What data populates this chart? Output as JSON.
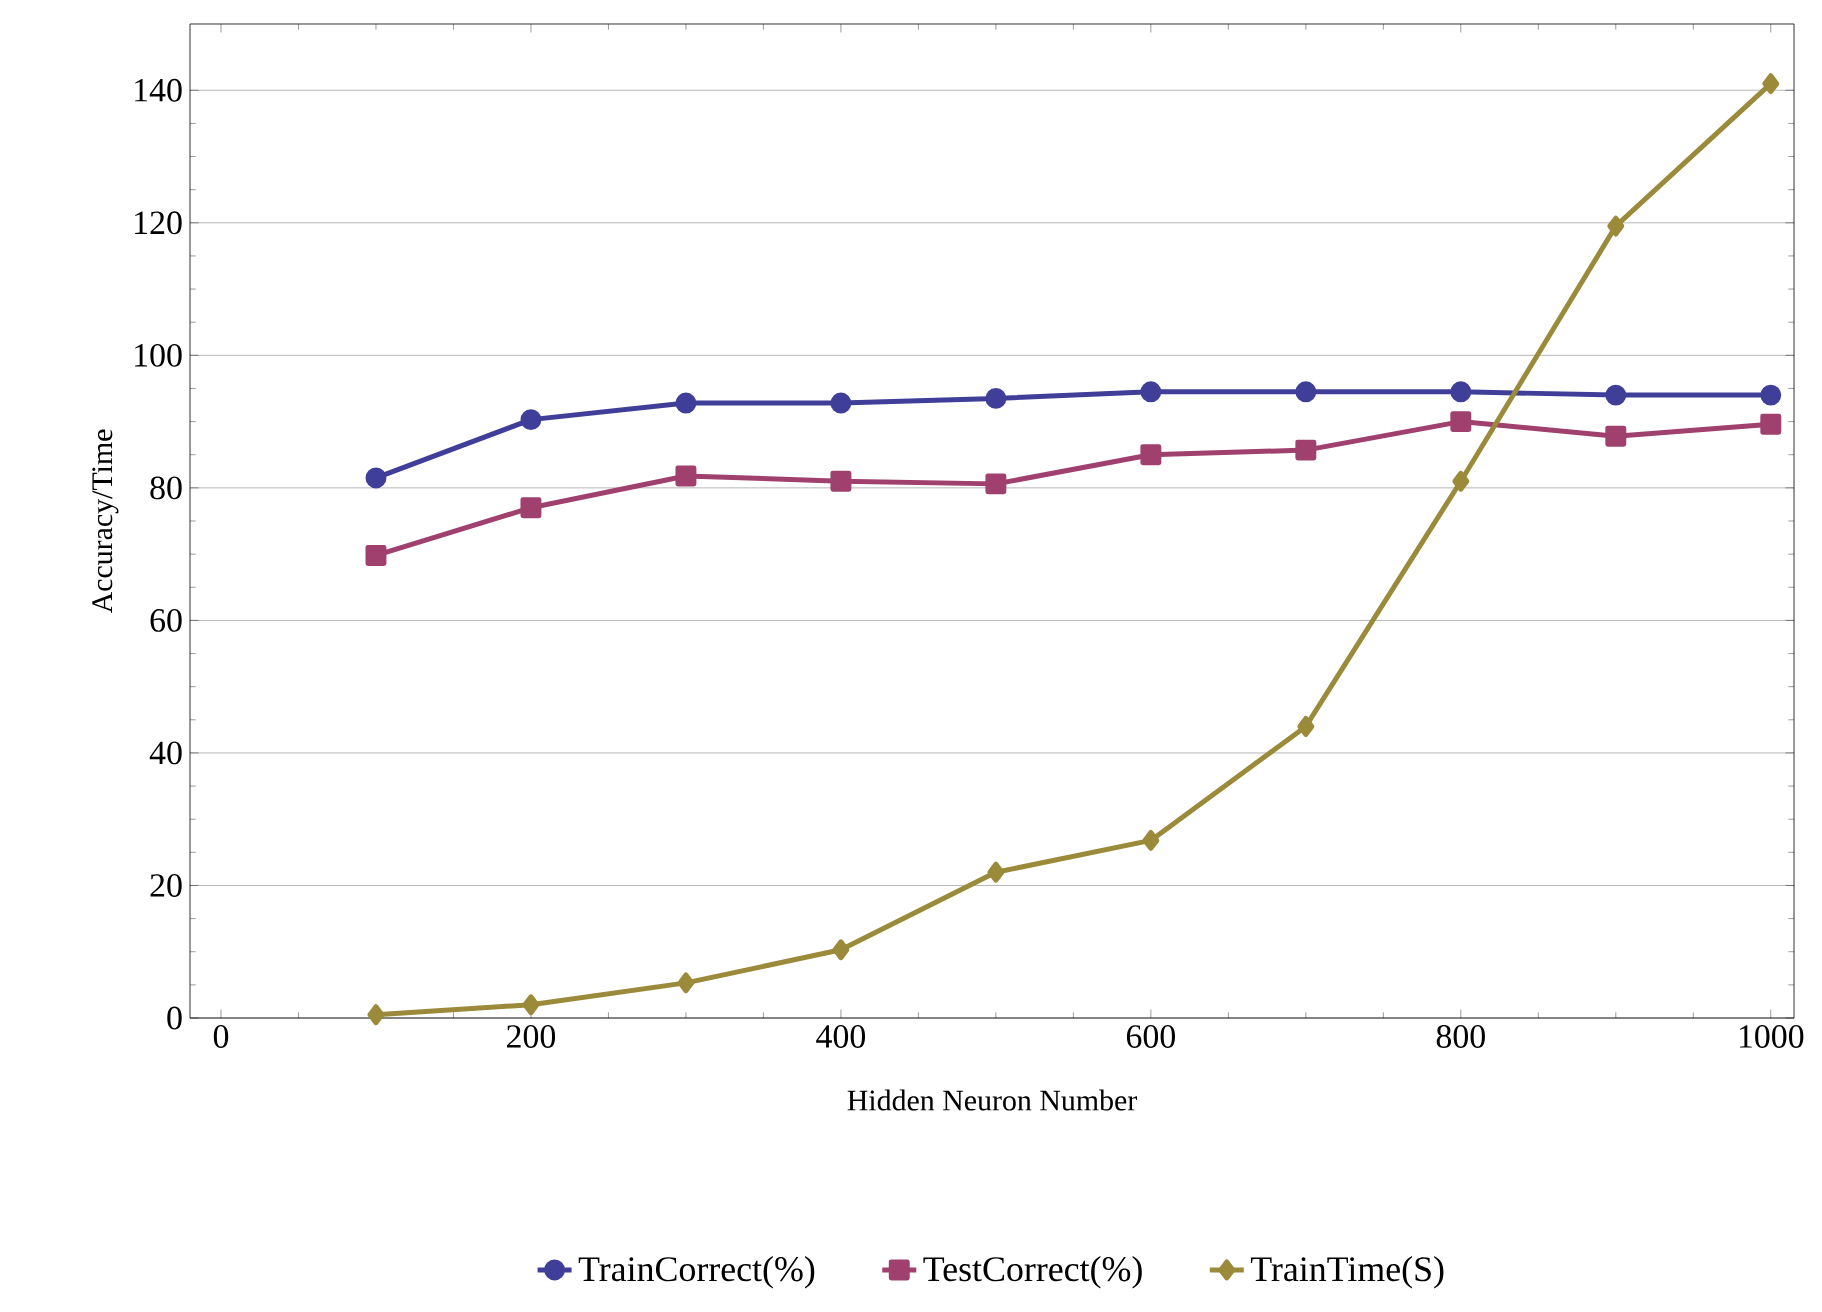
{
  "chart_data": {
    "type": "line",
    "xlabel": "Hidden Neuron Number",
    "ylabel": "Accuracy/Time",
    "x": [
      100,
      200,
      300,
      400,
      500,
      600,
      700,
      800,
      900,
      1000
    ],
    "series": [
      {
        "name": "TrainCorrect(%)",
        "color": "#3f3f9a",
        "marker": "circle",
        "values": [
          81.5,
          90.3,
          92.8,
          92.8,
          93.5,
          94.5,
          94.5,
          94.5,
          94,
          94
        ]
      },
      {
        "name": "TestCorrect(%)",
        "color": "#a0406e",
        "marker": "square",
        "values": [
          69.8,
          77,
          81.8,
          81,
          80.6,
          85,
          85.7,
          90,
          87.8,
          89.6
        ]
      },
      {
        "name": "TrainTime(S)",
        "color": "#9a8a3a",
        "marker": "diamond",
        "values": [
          0.5,
          2,
          5.3,
          10.3,
          22,
          26.8,
          44,
          81,
          119.5,
          141
        ]
      }
    ],
    "xlim": [
      -20,
      1015
    ],
    "xticks": [
      0,
      200,
      400,
      600,
      800,
      1000
    ],
    "ylim": [
      0,
      150
    ],
    "yticks": [
      0,
      20,
      40,
      60,
      80,
      100,
      120,
      140
    ],
    "grid": "y",
    "legend": "bottom",
    "line_style": "solid"
  }
}
